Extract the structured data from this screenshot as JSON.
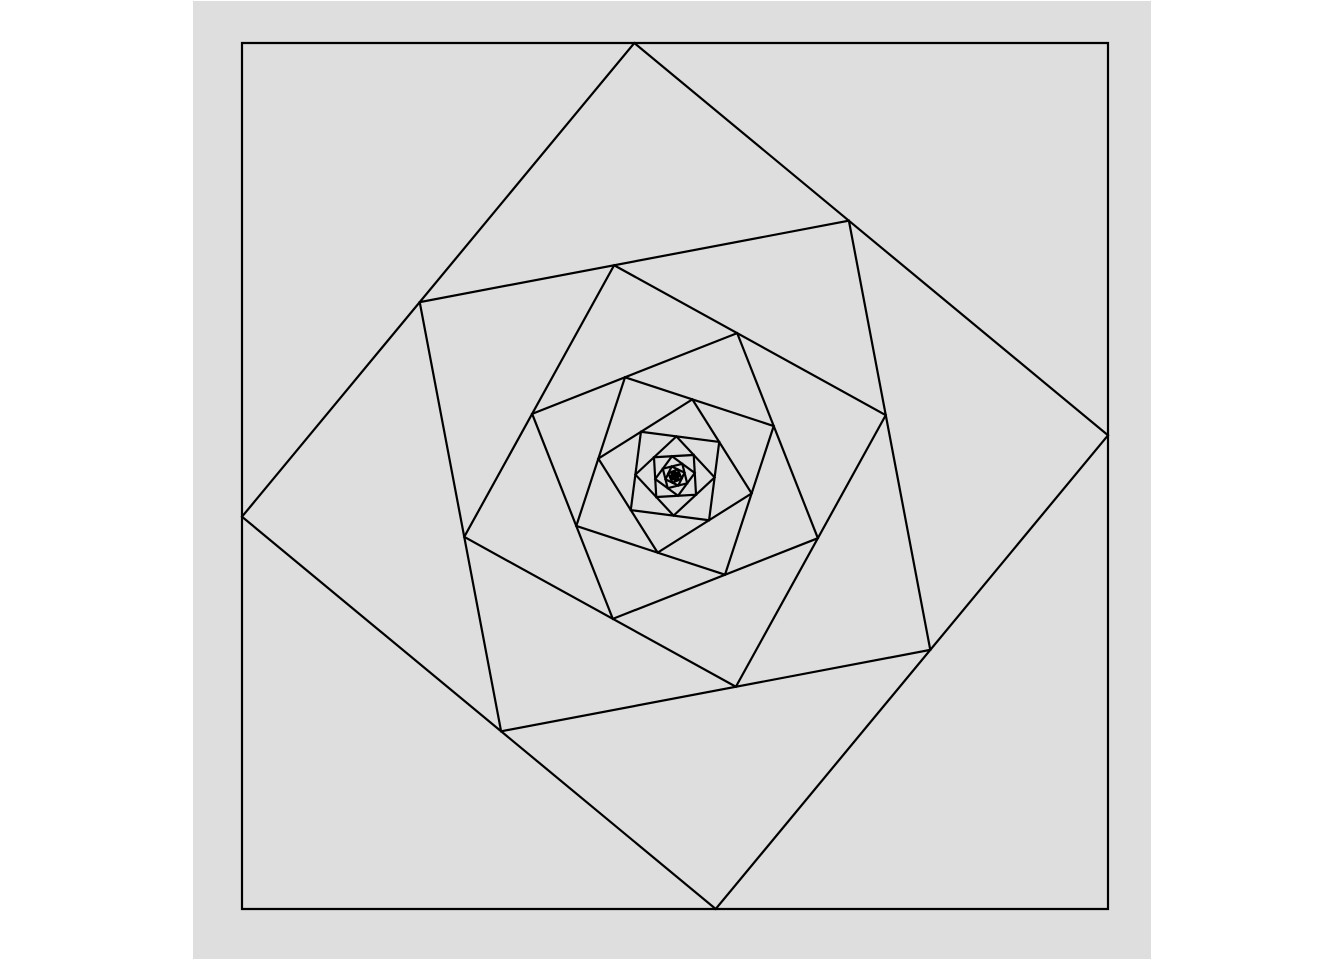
{
  "figure": {
    "background_color": "#dedede",
    "stroke_color": "#000000",
    "nested_square_count": 30,
    "corner_fraction": 0.453
  }
}
